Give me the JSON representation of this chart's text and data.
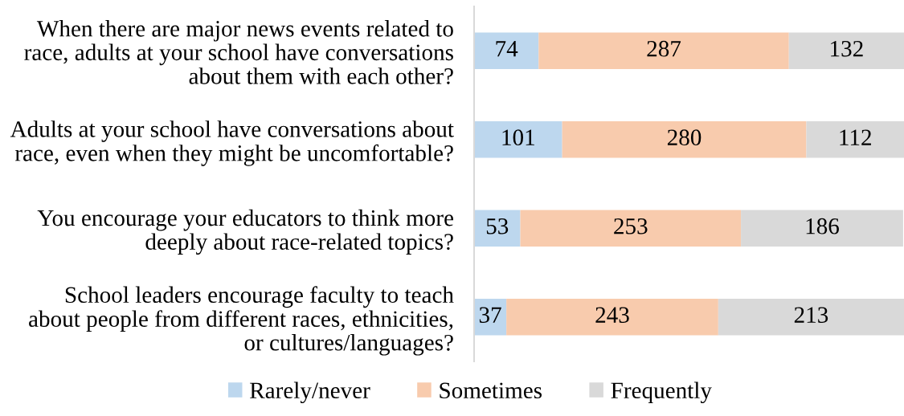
{
  "chart_data": {
    "type": "bar",
    "orientation": "horizontal",
    "stacked": true,
    "data_labels": true,
    "legend": "bottom",
    "tick_labels": "y",
    "grid": false,
    "categories": [
      "When there are major news events related to\nrace, adults at your school have conversations\nabout them with each other?",
      "Adults at your school have conversations about\nrace, even when they might be uncomfortable?",
      "You encourage your educators to think more\ndeeply about race-related topics?",
      "School leaders encourage faculty to teach\nabout people from different races, ethnicities,\nor cultures/languages?"
    ],
    "series": [
      {
        "name": "Rarely/never",
        "color": "#bdd7ee",
        "values": [
          74,
          101,
          53,
          37
        ]
      },
      {
        "name": "Sometimes",
        "color": "#f8cbad",
        "values": [
          287,
          280,
          253,
          243
        ]
      },
      {
        "name": "Frequently",
        "color": "#d9d9d9",
        "values": [
          132,
          112,
          186,
          213
        ]
      }
    ]
  }
}
